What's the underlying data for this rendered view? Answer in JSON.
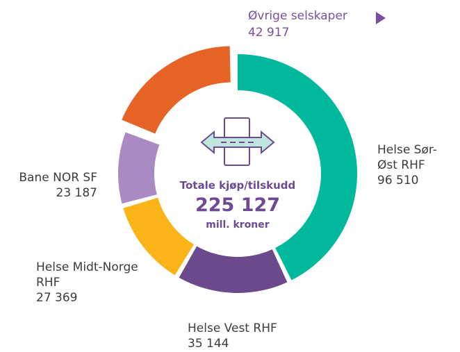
{
  "chart_data": {
    "type": "donut",
    "categories": [
      "Helse Sør-Øst RHF",
      "Helse Vest RHF",
      "Helse Midt-Norge RHF",
      "Bane NOR SF",
      "Øvrige selskaper"
    ],
    "values": [
      96510,
      35144,
      27369,
      23187,
      42917
    ],
    "value_labels": [
      "96 510",
      "35 144",
      "27 369",
      "23 187",
      "42 917"
    ],
    "colors": [
      "#00b89c",
      "#6a4a8c",
      "#fbb417",
      "#a98bc4",
      "#e56425"
    ],
    "center_title": "Totale kjøp/tilskudd",
    "total": 225127,
    "total_label": "225 127",
    "unit": "mill. kroner"
  }
}
